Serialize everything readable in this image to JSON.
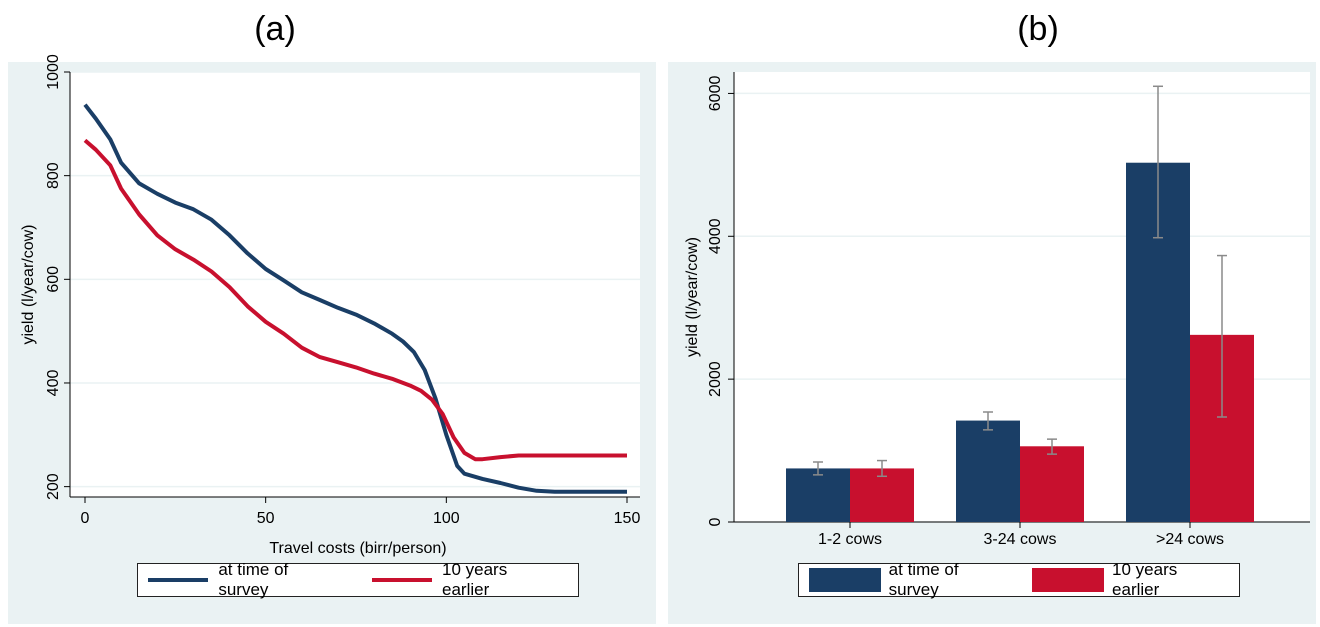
{
  "colors": {
    "survey": "#1a3e66",
    "earlier": "#c8102e",
    "panel_bg": "#eaf2f3",
    "grid": "#ffffff",
    "errorbar": "#8a8a8a"
  },
  "chart_data": [
    {
      "panel": "(a)",
      "type": "line",
      "xlabel": "Travel costs (birr/person)",
      "ylabel": "yield (l/year/cow)",
      "xlim": [
        0,
        150
      ],
      "ylim": [
        180,
        1000
      ],
      "xticks": [
        0,
        50,
        100,
        150
      ],
      "yticks": [
        200,
        400,
        600,
        800,
        1000
      ],
      "grid": true,
      "legend": "bottom",
      "series": [
        {
          "name": "at time of survey",
          "x": [
            0,
            3,
            7,
            10,
            15,
            20,
            25,
            30,
            35,
            40,
            45,
            50,
            55,
            60,
            65,
            70,
            75,
            80,
            85,
            88,
            91,
            94,
            97,
            100,
            103,
            105,
            110,
            115,
            120,
            125,
            130,
            140,
            150
          ],
          "y": [
            937,
            910,
            870,
            825,
            785,
            765,
            748,
            735,
            715,
            685,
            650,
            620,
            598,
            575,
            560,
            545,
            532,
            515,
            495,
            480,
            460,
            425,
            370,
            300,
            240,
            225,
            215,
            207,
            198,
            192,
            190,
            190,
            190
          ]
        },
        {
          "name": "10 years earlier",
          "x": [
            0,
            3,
            7,
            10,
            15,
            20,
            25,
            30,
            35,
            40,
            45,
            50,
            55,
            60,
            65,
            70,
            75,
            80,
            85,
            90,
            93,
            96,
            99,
            102,
            105,
            108,
            110,
            115,
            120,
            130,
            140,
            150
          ],
          "y": [
            868,
            850,
            820,
            775,
            725,
            685,
            658,
            638,
            615,
            585,
            548,
            518,
            495,
            468,
            450,
            440,
            430,
            418,
            408,
            395,
            385,
            368,
            340,
            295,
            265,
            253,
            253,
            257,
            260,
            260,
            260,
            260
          ]
        }
      ]
    },
    {
      "panel": "(b)",
      "type": "bar",
      "ylabel": "yield (l/year/cow)",
      "categories": [
        "1-2 cows",
        "3-24 cows",
        ">24 cows"
      ],
      "ylim": [
        0,
        6300
      ],
      "yticks": [
        0,
        2000,
        4000,
        6000
      ],
      "grid": true,
      "legend": "bottom",
      "series": [
        {
          "name": "at time of survey",
          "values": [
            750,
            1420,
            5030
          ],
          "error_low": [
            660,
            1290,
            3980
          ],
          "error_high": [
            840,
            1540,
            6100
          ]
        },
        {
          "name": "10 years earlier",
          "values": [
            750,
            1060,
            2620
          ],
          "error_low": [
            640,
            950,
            1470
          ],
          "error_high": [
            860,
            1160,
            3730
          ]
        }
      ]
    }
  ]
}
